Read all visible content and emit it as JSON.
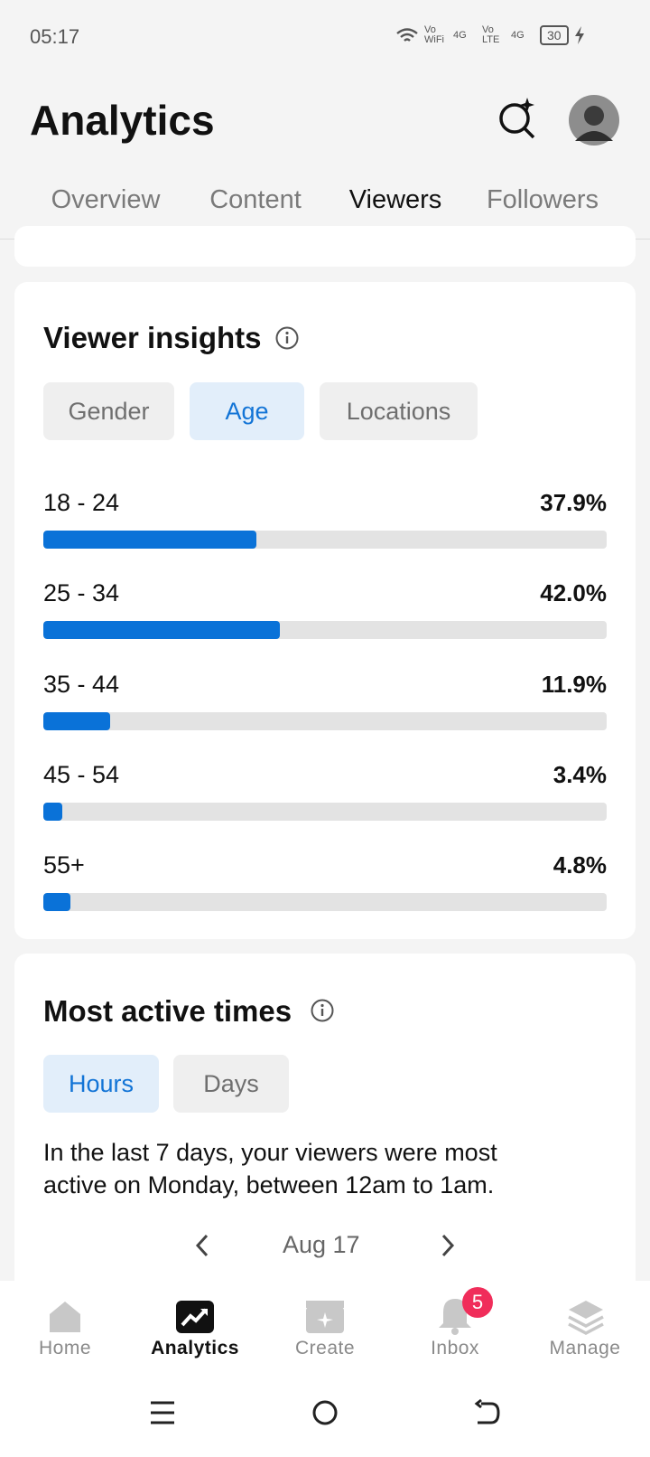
{
  "status_bar": {
    "time": "05:17",
    "indicators": [
      "Vo WiFi",
      "4G",
      "Vo LTE",
      "4G"
    ],
    "battery": 30
  },
  "header": {
    "title": "Analytics",
    "tabs": [
      "Overview",
      "Content",
      "Viewers",
      "Followers"
    ]
  },
  "viewer_insights": {
    "title": "Viewer insights",
    "filters": [
      "Gender",
      "Age",
      "Locations"
    ],
    "xlim": [
      0,
      100
    ],
    "rows": [
      {
        "label": "18 - 24",
        "value": 37.9,
        "value_label": "37.9%"
      },
      {
        "label": "25 - 34",
        "value": 42.0,
        "value_label": "42.0%"
      },
      {
        "label": "35 - 44",
        "value": 11.9,
        "value_label": "11.9%"
      },
      {
        "label": "45 - 54",
        "value": 3.4,
        "value_label": "3.4%"
      },
      {
        "label": "55+",
        "value": 4.8,
        "value_label": "4.8%"
      }
    ]
  },
  "most_active_times": {
    "title": "Most active times",
    "filters": [
      "Hours",
      "Days"
    ],
    "description": "In the last 7 days, your viewers were most active on Monday, between 12am to 1am.",
    "date": "Aug 17"
  },
  "bottom_nav": {
    "items": [
      "Home",
      "Analytics",
      "Create",
      "Inbox",
      "Manage"
    ],
    "inbox_badge": 5
  }
}
